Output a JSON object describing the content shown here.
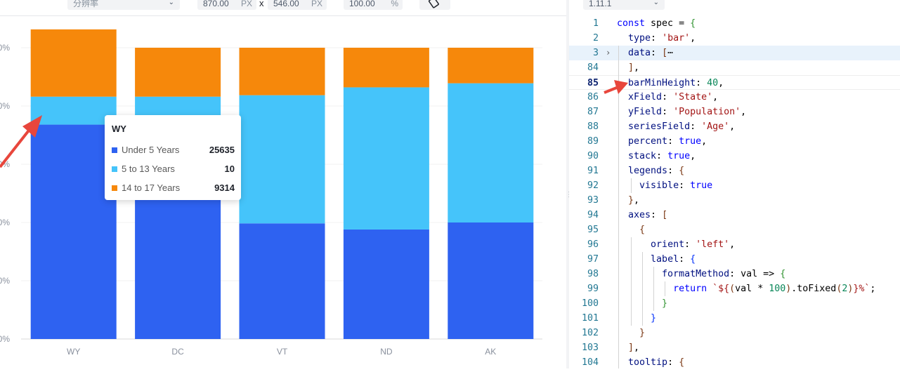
{
  "toolbar": {
    "resolution_label": "分辨率",
    "width_value": "870.00",
    "width_unit": "PX",
    "times": "x",
    "height_value": "546.00",
    "height_unit": "PX",
    "scale_value": "100.00",
    "scale_unit": "%",
    "version": "1.11.1"
  },
  "tooltip": {
    "title": "WY",
    "rows": [
      {
        "name": "Under 5 Years",
        "value": "25635",
        "color": "#2e62f1"
      },
      {
        "name": "5 to 13 Years",
        "value": "10",
        "color": "#45c4fa"
      },
      {
        "name": "14 to 17 Years",
        "value": "9314",
        "color": "#f6880b"
      }
    ]
  },
  "colors": {
    "series1": "#2e62f1",
    "series2": "#45c4fa",
    "series3": "#f6880b",
    "arrow": "#e8463c"
  },
  "chart_data": {
    "type": "bar",
    "categories": [
      "WY",
      "DC",
      "VT",
      "ND",
      "AK"
    ],
    "y_tick_suffixes": [
      "0%",
      "0%",
      "0%",
      "0%",
      "0%",
      "0%",
      "0%"
    ],
    "series": [
      {
        "name": "Under 5 Years",
        "values": [
          0.736,
          0.6,
          0.397,
          0.376,
          0.4
        ]
      },
      {
        "name": "5 to 13 Years",
        "values": [
          0.096,
          0.232,
          0.44,
          0.488,
          0.478
        ]
      },
      {
        "name": "14 to 17 Years",
        "values": [
          0.231,
          0.168,
          0.163,
          0.136,
          0.122
        ]
      }
    ],
    "ylim": [
      0,
      1.0
    ],
    "grid": true,
    "legend": "none"
  },
  "editor": {
    "lines": [
      {
        "n": "1",
        "html": "<span class=\"kw\">const</span> spec = <span class=\"bk\">{</span>"
      },
      {
        "n": "2",
        "html": "  <span class=\"prop\">type</span>: <span class=\"str\">'bar'</span>,"
      },
      {
        "n": "3",
        "html": "  <span class=\"prop\">data</span>: <span class=\"bk2\">[</span>⋯",
        "fold": true,
        "hl": true
      },
      {
        "n": "84",
        "html": "  <span class=\"bk2\">]</span>,"
      },
      {
        "n": "85",
        "html": "  <span class=\"prop\">barMinHeight</span>: <span class=\"num\">40</span>,",
        "cur": true
      },
      {
        "n": "86",
        "html": "  <span class=\"prop\">xField</span>: <span class=\"str\">'State'</span>,"
      },
      {
        "n": "87",
        "html": "  <span class=\"prop\">yField</span>: <span class=\"str\">'Population'</span>,"
      },
      {
        "n": "88",
        "html": "  <span class=\"prop\">seriesField</span>: <span class=\"str\">'Age'</span>,"
      },
      {
        "n": "89",
        "html": "  <span class=\"prop\">percent</span>: <span class=\"kw\">true</span>,"
      },
      {
        "n": "90",
        "html": "  <span class=\"prop\">stack</span>: <span class=\"kw\">true</span>,"
      },
      {
        "n": "91",
        "html": "  <span class=\"prop\">legends</span>: <span class=\"bk2\">{</span>"
      },
      {
        "n": "92",
        "html": "    <span class=\"prop\">visible</span>: <span class=\"kw\">true</span>"
      },
      {
        "n": "93",
        "html": "  <span class=\"bk2\">}</span>,"
      },
      {
        "n": "94",
        "html": "  <span class=\"prop\">axes</span>: <span class=\"bk2\">[</span>"
      },
      {
        "n": "95",
        "html": "    <span class=\"bk2\">{</span>"
      },
      {
        "n": "96",
        "html": "      <span class=\"prop\">orient</span>: <span class=\"str\">'left'</span>,"
      },
      {
        "n": "97",
        "html": "      <span class=\"prop\">label</span>: <span class=\"bk3\">{</span>"
      },
      {
        "n": "98",
        "html": "        <span class=\"prop\">formatMethod</span>: val => <span class=\"bk\">{</span>"
      },
      {
        "n": "99",
        "html": "          <span class=\"kw\">return</span> <span class=\"tpl\">`${</span><span class=\"bk2\">(</span>val * <span class=\"num\">100</span><span class=\"bk2\">)</span>.toFixed<span class=\"bk2\">(</span><span class=\"num\">2</span><span class=\"bk2\">)</span><span class=\"tpl\">}%`</span>;"
      },
      {
        "n": "100",
        "html": "        <span class=\"bk\">}</span>"
      },
      {
        "n": "101",
        "html": "      <span class=\"bk3\">}</span>"
      },
      {
        "n": "102",
        "html": "    <span class=\"bk2\">}</span>"
      },
      {
        "n": "103",
        "html": "  <span class=\"bk2\">]</span>,"
      },
      {
        "n": "104",
        "html": "  <span class=\"prop\">tooltip</span>: <span class=\"bk2\">{</span>"
      }
    ]
  }
}
